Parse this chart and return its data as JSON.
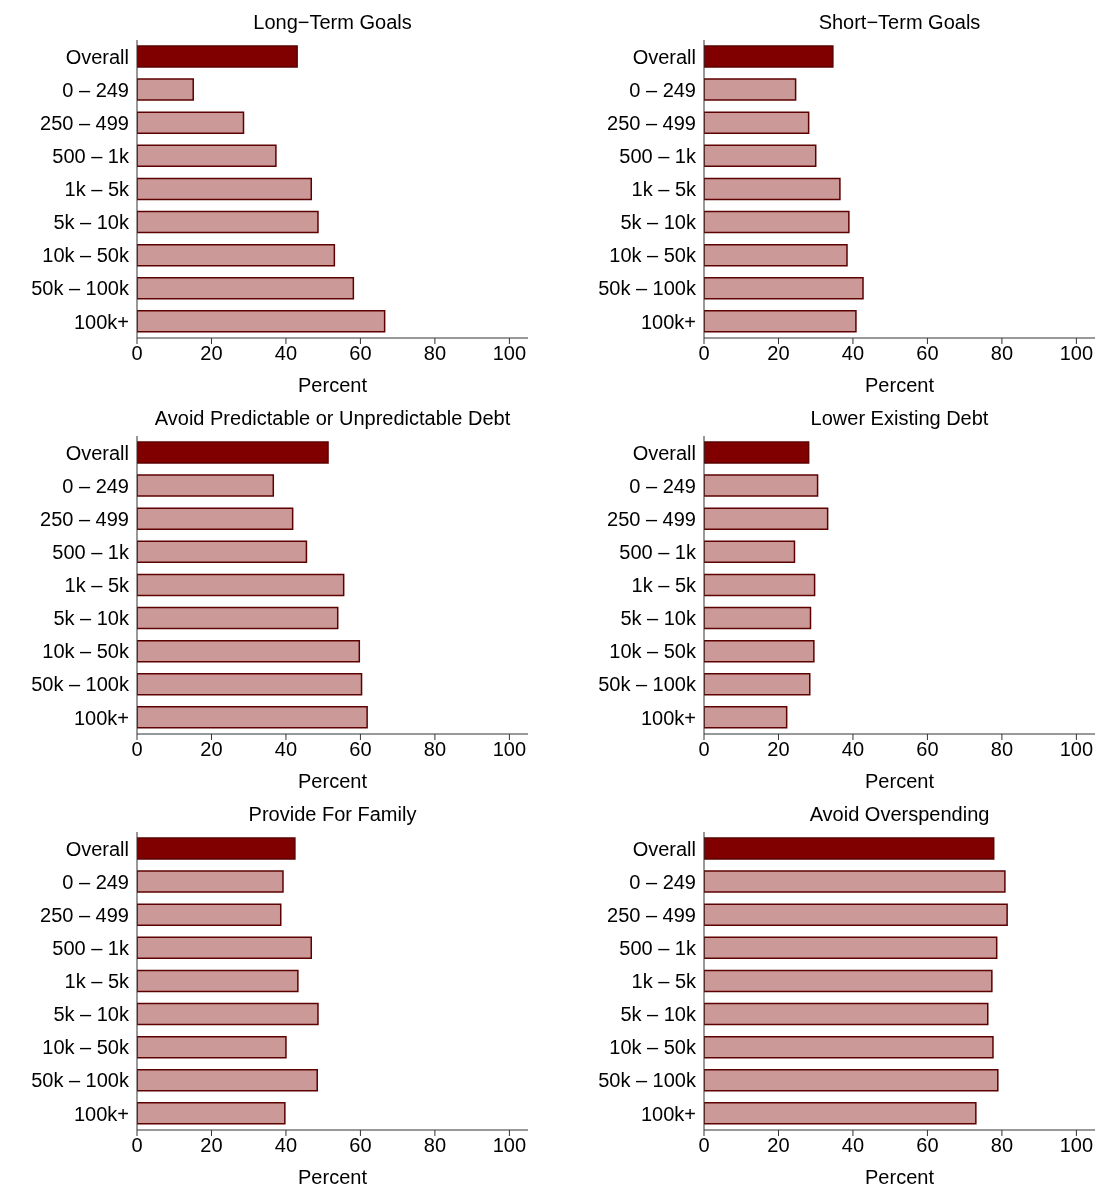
{
  "chart_data": [
    {
      "type": "bar",
      "orientation": "horizontal",
      "title": "Long−Term Goals",
      "xlabel": "Percent",
      "categories": [
        "Overall",
        "0 – 249",
        "250 – 499",
        "500 – 1k",
        "1k – 5k",
        "5k – 10k",
        "10k – 50k",
        "50k – 100k",
        "100k+"
      ],
      "values": [
        43.0,
        15.1,
        28.6,
        37.3,
        46.8,
        48.6,
        53.0,
        58.1,
        66.5
      ],
      "colors": [
        "#800000",
        "#cc9999",
        "#cc9999",
        "#cc9999",
        "#cc9999",
        "#cc9999",
        "#cc9999",
        "#cc9999",
        "#cc9999"
      ],
      "xlim": [
        0,
        105
      ],
      "xticks": [
        0,
        20,
        40,
        60,
        80,
        100
      ]
    },
    {
      "type": "bar",
      "orientation": "horizontal",
      "title": "Short−Term Goals",
      "xlabel": "Percent",
      "categories": [
        "Overall",
        "0 – 249",
        "250 – 499",
        "500 – 1k",
        "1k – 5k",
        "5k – 10k",
        "10k – 50k",
        "50k – 100k",
        "100k+"
      ],
      "values": [
        34.6,
        24.6,
        28.1,
        30.0,
        36.5,
        38.9,
        38.4,
        42.7,
        40.8
      ],
      "colors": [
        "#800000",
        "#cc9999",
        "#cc9999",
        "#cc9999",
        "#cc9999",
        "#cc9999",
        "#cc9999",
        "#cc9999",
        "#cc9999"
      ],
      "xlim": [
        0,
        105
      ],
      "xticks": [
        0,
        20,
        40,
        60,
        80,
        100
      ]
    },
    {
      "type": "bar",
      "orientation": "horizontal",
      "title": "Avoid Predictable or Unpredictable Debt",
      "xlabel": "Percent",
      "categories": [
        "Overall",
        "0 – 249",
        "250 – 499",
        "500 – 1k",
        "1k – 5k",
        "5k – 10k",
        "10k – 50k",
        "50k – 100k",
        "100k+"
      ],
      "values": [
        51.3,
        36.6,
        41.8,
        45.5,
        55.5,
        53.9,
        59.7,
        60.3,
        61.8
      ],
      "colors": [
        "#800000",
        "#cc9999",
        "#cc9999",
        "#cc9999",
        "#cc9999",
        "#cc9999",
        "#cc9999",
        "#cc9999",
        "#cc9999"
      ],
      "xlim": [
        0,
        105
      ],
      "xticks": [
        0,
        20,
        40,
        60,
        80,
        100
      ]
    },
    {
      "type": "bar",
      "orientation": "horizontal",
      "title": "Lower Existing Debt",
      "xlabel": "Percent",
      "categories": [
        "Overall",
        "0 – 249",
        "250 – 499",
        "500 – 1k",
        "1k – 5k",
        "5k – 10k",
        "10k – 50k",
        "50k – 100k",
        "100k+"
      ],
      "values": [
        28.1,
        30.5,
        33.2,
        24.3,
        29.7,
        28.6,
        29.5,
        28.4,
        22.2
      ],
      "colors": [
        "#800000",
        "#cc9999",
        "#cc9999",
        "#cc9999",
        "#cc9999",
        "#cc9999",
        "#cc9999",
        "#cc9999",
        "#cc9999"
      ],
      "xlim": [
        0,
        105
      ],
      "xticks": [
        0,
        20,
        40,
        60,
        80,
        100
      ]
    },
    {
      "type": "bar",
      "orientation": "horizontal",
      "title": "Provide For Family",
      "xlabel": "Percent",
      "categories": [
        "Overall",
        "0 – 249",
        "250 – 499",
        "500 – 1k",
        "1k – 5k",
        "5k – 10k",
        "10k – 50k",
        "50k – 100k",
        "100k+"
      ],
      "values": [
        42.4,
        39.2,
        38.6,
        46.8,
        43.2,
        48.6,
        40.0,
        48.4,
        39.7
      ],
      "colors": [
        "#800000",
        "#cc9999",
        "#cc9999",
        "#cc9999",
        "#cc9999",
        "#cc9999",
        "#cc9999",
        "#cc9999",
        "#cc9999"
      ],
      "xlim": [
        0,
        105
      ],
      "xticks": [
        0,
        20,
        40,
        60,
        80,
        100
      ]
    },
    {
      "type": "bar",
      "orientation": "horizontal",
      "title": "Avoid Overspending",
      "xlabel": "Percent",
      "categories": [
        "Overall",
        "0 – 249",
        "250 – 499",
        "500 – 1k",
        "1k – 5k",
        "5k – 10k",
        "10k – 50k",
        "50k – 100k",
        "100k+"
      ],
      "values": [
        77.8,
        80.8,
        81.4,
        78.6,
        77.3,
        76.2,
        77.6,
        78.9,
        73.0
      ],
      "colors": [
        "#800000",
        "#cc9999",
        "#cc9999",
        "#cc9999",
        "#cc9999",
        "#cc9999",
        "#cc9999",
        "#cc9999",
        "#cc9999"
      ],
      "xlim": [
        0,
        105
      ],
      "xticks": [
        0,
        20,
        40,
        60,
        80,
        100
      ]
    }
  ]
}
